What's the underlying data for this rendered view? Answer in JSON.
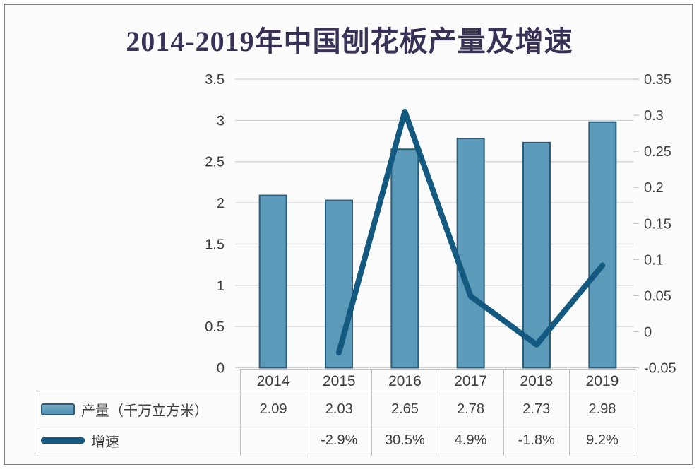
{
  "title": "2014-2019年中国刨花板产量及增速",
  "colors": {
    "bar_fill": "#5B9AB8",
    "bar_border": "#2B5C7B",
    "line": "#145980",
    "grid": "#D3D3D3",
    "tick": "#C4C4C4",
    "text": "#3F3F3F",
    "title": "#3A3157",
    "table_border": "#BFBFBF",
    "frame_border": "#7E7E7E",
    "background": "#FCFCFC"
  },
  "chart_data": {
    "type": "bar+line",
    "title": "2014-2019年中国刨花板产量及增速",
    "categories": [
      "2014",
      "2015",
      "2016",
      "2017",
      "2018",
      "2019"
    ],
    "series": [
      {
        "name": "产量（千万立方米）",
        "type": "bar",
        "axis": "left",
        "values": [
          2.09,
          2.03,
          2.65,
          2.78,
          2.73,
          2.98
        ],
        "display": [
          "2.09",
          "2.03",
          "2.65",
          "2.78",
          "2.73",
          "2.98"
        ]
      },
      {
        "name": "增速",
        "type": "line",
        "axis": "right",
        "values": [
          null,
          -0.029,
          0.305,
          0.049,
          -0.018,
          0.092
        ],
        "display": [
          "",
          "-2.9%",
          "30.5%",
          "4.9%",
          "-1.8%",
          "9.2%"
        ]
      }
    ],
    "left_axis": {
      "min": 0,
      "max": 3.5,
      "step": 0.5,
      "tick_labels": [
        "3.5",
        "3",
        "2.5",
        "2",
        "1.5",
        "1",
        "0.5",
        "0"
      ]
    },
    "right_axis": {
      "min": -0.05,
      "max": 0.35,
      "step": 0.05,
      "tick_labels": [
        "0.35",
        "0.3",
        "0.25",
        "0.2",
        "0.15",
        "0.1",
        "0.05",
        "0",
        "-0.05"
      ]
    },
    "grid": true,
    "legend_position": "table-left"
  }
}
